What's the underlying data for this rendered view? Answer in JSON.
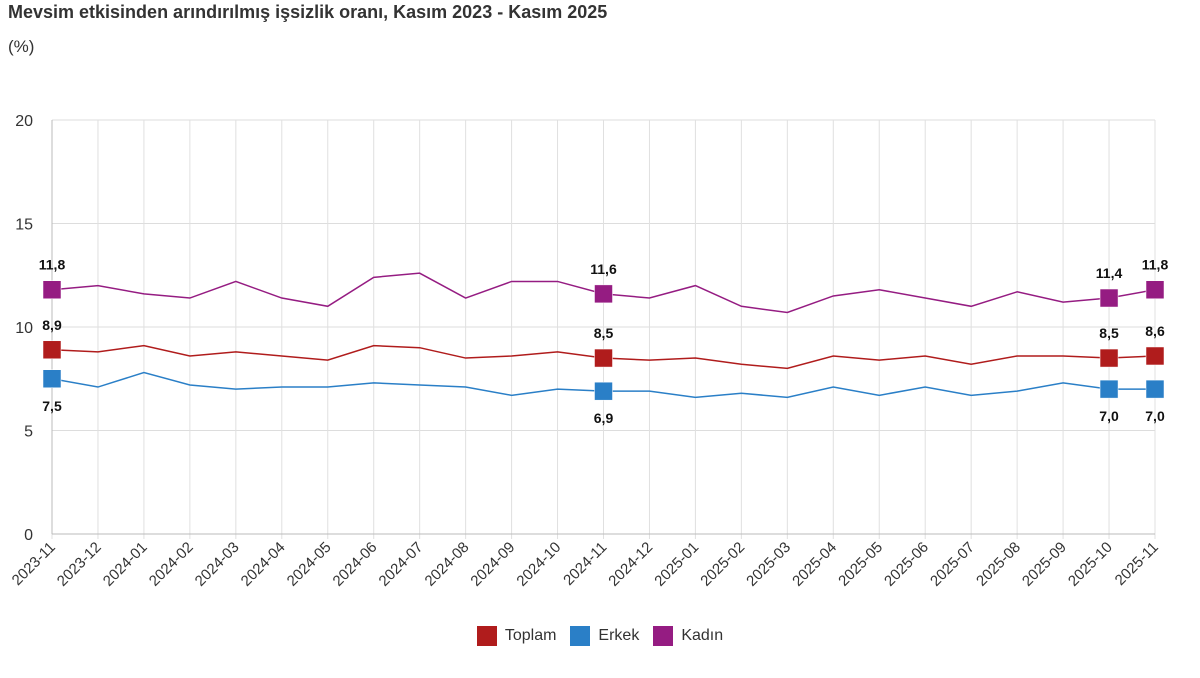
{
  "chart_data": {
    "type": "line",
    "title": "Mevsim etkisinden arındırılmış işsizlik oranı, Kasım 2023 - Kasım 2025",
    "subtitle": "(%)",
    "ylim": [
      0,
      20
    ],
    "yticks": [
      "0",
      "5",
      "10",
      "15",
      "20"
    ],
    "ytick_values": [
      0,
      5,
      10,
      15,
      20
    ],
    "grid": true,
    "legend_position": "bottom",
    "x": [
      "2023-11",
      "2023-12",
      "2024-01",
      "2024-02",
      "2024-03",
      "2024-04",
      "2024-05",
      "2024-06",
      "2024-07",
      "2024-08",
      "2024-09",
      "2024-10",
      "2024-11",
      "2024-12",
      "2025-01",
      "2025-02",
      "2025-03",
      "2025-04",
      "2025-05",
      "2025-06",
      "2025-07",
      "2025-08",
      "2025-09",
      "2025-10",
      "2025-11"
    ],
    "series": [
      {
        "name": "Toplam",
        "color": "#b01c1c",
        "values": [
          8.9,
          8.8,
          9.1,
          8.6,
          8.8,
          8.6,
          8.4,
          9.1,
          9.0,
          8.5,
          8.6,
          8.8,
          8.5,
          8.4,
          8.5,
          8.2,
          8.0,
          8.6,
          8.4,
          8.6,
          8.2,
          8.6,
          8.6,
          8.5,
          8.6
        ]
      },
      {
        "name": "Erkek",
        "color": "#2a7fc7",
        "values": [
          7.5,
          7.1,
          7.8,
          7.2,
          7.0,
          7.1,
          7.1,
          7.3,
          7.2,
          7.1,
          6.7,
          7.0,
          6.9,
          6.9,
          6.6,
          6.8,
          6.6,
          7.1,
          6.7,
          7.1,
          6.7,
          6.9,
          7.3,
          7.0,
          7.0
        ]
      },
      {
        "name": "Kadın",
        "color": "#951c82",
        "values": [
          11.8,
          12.0,
          11.6,
          11.4,
          12.2,
          11.4,
          11.0,
          12.4,
          12.6,
          11.4,
          12.2,
          12.2,
          11.6,
          11.4,
          12.0,
          11.0,
          10.7,
          11.5,
          11.8,
          11.4,
          11.0,
          11.7,
          11.2,
          11.4,
          11.8
        ]
      }
    ],
    "labeled_points": [
      0,
      12,
      23,
      24
    ],
    "data_labels": {
      "Toplam": {
        "0": "8,9",
        "12": "8,5",
        "23": "8,5",
        "24": "8,6"
      },
      "Erkek": {
        "0": "7,5",
        "12": "6,9",
        "23": "7,0",
        "24": "7,0"
      },
      "Kadın": {
        "0": "11,8",
        "12": "11,6",
        "23": "11,4",
        "24": "11,8"
      }
    }
  }
}
